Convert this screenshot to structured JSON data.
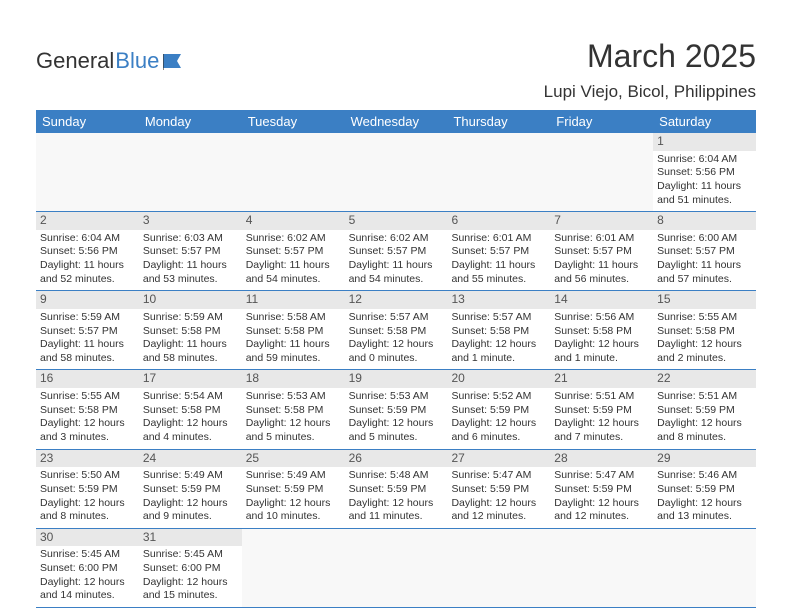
{
  "logo": {
    "text1": "General",
    "text2": "Blue"
  },
  "title": "March 2025",
  "location": "Lupi Viejo, Bicol, Philippines",
  "daynames": [
    "Sunday",
    "Monday",
    "Tuesday",
    "Wednesday",
    "Thursday",
    "Friday",
    "Saturday"
  ],
  "colors": {
    "header_bg": "#3b7fc4",
    "header_fg": "#ffffff",
    "border": "#3b7fc4",
    "daynum_bg": "#e8e8e8",
    "text": "#333333"
  },
  "weeks": [
    [
      {
        "empty": true
      },
      {
        "empty": true
      },
      {
        "empty": true
      },
      {
        "empty": true
      },
      {
        "empty": true
      },
      {
        "empty": true
      },
      {
        "num": "1",
        "sunrise": "Sunrise: 6:04 AM",
        "sunset": "Sunset: 5:56 PM",
        "daylight1": "Daylight: 11 hours",
        "daylight2": "and 51 minutes."
      }
    ],
    [
      {
        "num": "2",
        "sunrise": "Sunrise: 6:04 AM",
        "sunset": "Sunset: 5:56 PM",
        "daylight1": "Daylight: 11 hours",
        "daylight2": "and 52 minutes."
      },
      {
        "num": "3",
        "sunrise": "Sunrise: 6:03 AM",
        "sunset": "Sunset: 5:57 PM",
        "daylight1": "Daylight: 11 hours",
        "daylight2": "and 53 minutes."
      },
      {
        "num": "4",
        "sunrise": "Sunrise: 6:02 AM",
        "sunset": "Sunset: 5:57 PM",
        "daylight1": "Daylight: 11 hours",
        "daylight2": "and 54 minutes."
      },
      {
        "num": "5",
        "sunrise": "Sunrise: 6:02 AM",
        "sunset": "Sunset: 5:57 PM",
        "daylight1": "Daylight: 11 hours",
        "daylight2": "and 54 minutes."
      },
      {
        "num": "6",
        "sunrise": "Sunrise: 6:01 AM",
        "sunset": "Sunset: 5:57 PM",
        "daylight1": "Daylight: 11 hours",
        "daylight2": "and 55 minutes."
      },
      {
        "num": "7",
        "sunrise": "Sunrise: 6:01 AM",
        "sunset": "Sunset: 5:57 PM",
        "daylight1": "Daylight: 11 hours",
        "daylight2": "and 56 minutes."
      },
      {
        "num": "8",
        "sunrise": "Sunrise: 6:00 AM",
        "sunset": "Sunset: 5:57 PM",
        "daylight1": "Daylight: 11 hours",
        "daylight2": "and 57 minutes."
      }
    ],
    [
      {
        "num": "9",
        "sunrise": "Sunrise: 5:59 AM",
        "sunset": "Sunset: 5:57 PM",
        "daylight1": "Daylight: 11 hours",
        "daylight2": "and 58 minutes."
      },
      {
        "num": "10",
        "sunrise": "Sunrise: 5:59 AM",
        "sunset": "Sunset: 5:58 PM",
        "daylight1": "Daylight: 11 hours",
        "daylight2": "and 58 minutes."
      },
      {
        "num": "11",
        "sunrise": "Sunrise: 5:58 AM",
        "sunset": "Sunset: 5:58 PM",
        "daylight1": "Daylight: 11 hours",
        "daylight2": "and 59 minutes."
      },
      {
        "num": "12",
        "sunrise": "Sunrise: 5:57 AM",
        "sunset": "Sunset: 5:58 PM",
        "daylight1": "Daylight: 12 hours",
        "daylight2": "and 0 minutes."
      },
      {
        "num": "13",
        "sunrise": "Sunrise: 5:57 AM",
        "sunset": "Sunset: 5:58 PM",
        "daylight1": "Daylight: 12 hours",
        "daylight2": "and 1 minute."
      },
      {
        "num": "14",
        "sunrise": "Sunrise: 5:56 AM",
        "sunset": "Sunset: 5:58 PM",
        "daylight1": "Daylight: 12 hours",
        "daylight2": "and 1 minute."
      },
      {
        "num": "15",
        "sunrise": "Sunrise: 5:55 AM",
        "sunset": "Sunset: 5:58 PM",
        "daylight1": "Daylight: 12 hours",
        "daylight2": "and 2 minutes."
      }
    ],
    [
      {
        "num": "16",
        "sunrise": "Sunrise: 5:55 AM",
        "sunset": "Sunset: 5:58 PM",
        "daylight1": "Daylight: 12 hours",
        "daylight2": "and 3 minutes."
      },
      {
        "num": "17",
        "sunrise": "Sunrise: 5:54 AM",
        "sunset": "Sunset: 5:58 PM",
        "daylight1": "Daylight: 12 hours",
        "daylight2": "and 4 minutes."
      },
      {
        "num": "18",
        "sunrise": "Sunrise: 5:53 AM",
        "sunset": "Sunset: 5:58 PM",
        "daylight1": "Daylight: 12 hours",
        "daylight2": "and 5 minutes."
      },
      {
        "num": "19",
        "sunrise": "Sunrise: 5:53 AM",
        "sunset": "Sunset: 5:59 PM",
        "daylight1": "Daylight: 12 hours",
        "daylight2": "and 5 minutes."
      },
      {
        "num": "20",
        "sunrise": "Sunrise: 5:52 AM",
        "sunset": "Sunset: 5:59 PM",
        "daylight1": "Daylight: 12 hours",
        "daylight2": "and 6 minutes."
      },
      {
        "num": "21",
        "sunrise": "Sunrise: 5:51 AM",
        "sunset": "Sunset: 5:59 PM",
        "daylight1": "Daylight: 12 hours",
        "daylight2": "and 7 minutes."
      },
      {
        "num": "22",
        "sunrise": "Sunrise: 5:51 AM",
        "sunset": "Sunset: 5:59 PM",
        "daylight1": "Daylight: 12 hours",
        "daylight2": "and 8 minutes."
      }
    ],
    [
      {
        "num": "23",
        "sunrise": "Sunrise: 5:50 AM",
        "sunset": "Sunset: 5:59 PM",
        "daylight1": "Daylight: 12 hours",
        "daylight2": "and 8 minutes."
      },
      {
        "num": "24",
        "sunrise": "Sunrise: 5:49 AM",
        "sunset": "Sunset: 5:59 PM",
        "daylight1": "Daylight: 12 hours",
        "daylight2": "and 9 minutes."
      },
      {
        "num": "25",
        "sunrise": "Sunrise: 5:49 AM",
        "sunset": "Sunset: 5:59 PM",
        "daylight1": "Daylight: 12 hours",
        "daylight2": "and 10 minutes."
      },
      {
        "num": "26",
        "sunrise": "Sunrise: 5:48 AM",
        "sunset": "Sunset: 5:59 PM",
        "daylight1": "Daylight: 12 hours",
        "daylight2": "and 11 minutes."
      },
      {
        "num": "27",
        "sunrise": "Sunrise: 5:47 AM",
        "sunset": "Sunset: 5:59 PM",
        "daylight1": "Daylight: 12 hours",
        "daylight2": "and 12 minutes."
      },
      {
        "num": "28",
        "sunrise": "Sunrise: 5:47 AM",
        "sunset": "Sunset: 5:59 PM",
        "daylight1": "Daylight: 12 hours",
        "daylight2": "and 12 minutes."
      },
      {
        "num": "29",
        "sunrise": "Sunrise: 5:46 AM",
        "sunset": "Sunset: 5:59 PM",
        "daylight1": "Daylight: 12 hours",
        "daylight2": "and 13 minutes."
      }
    ],
    [
      {
        "num": "30",
        "sunrise": "Sunrise: 5:45 AM",
        "sunset": "Sunset: 6:00 PM",
        "daylight1": "Daylight: 12 hours",
        "daylight2": "and 14 minutes."
      },
      {
        "num": "31",
        "sunrise": "Sunrise: 5:45 AM",
        "sunset": "Sunset: 6:00 PM",
        "daylight1": "Daylight: 12 hours",
        "daylight2": "and 15 minutes."
      },
      {
        "empty": true
      },
      {
        "empty": true
      },
      {
        "empty": true
      },
      {
        "empty": true
      },
      {
        "empty": true
      }
    ]
  ]
}
